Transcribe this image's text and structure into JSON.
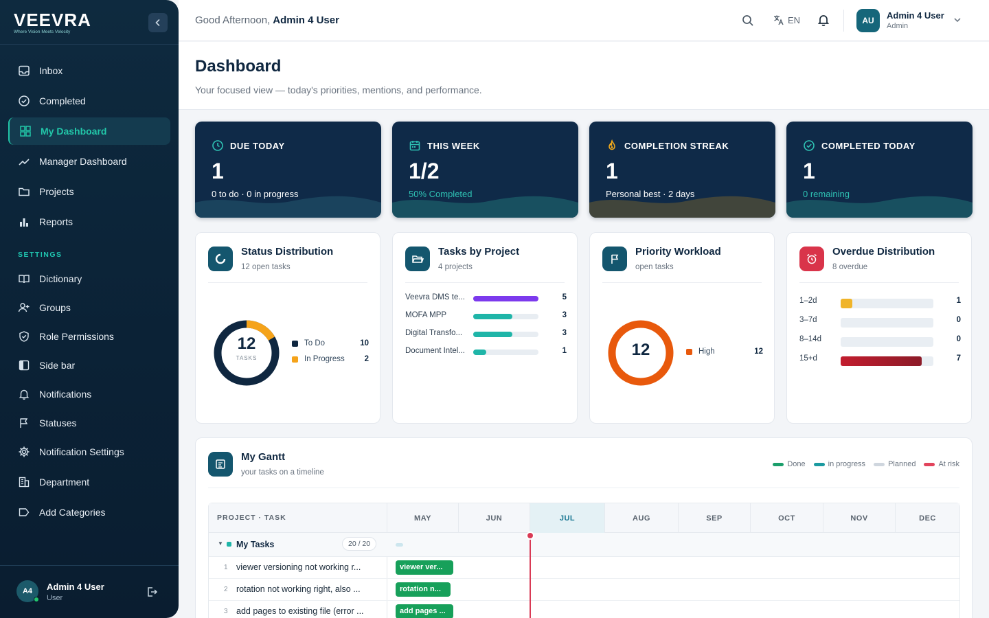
{
  "brand": {
    "name": "VEEVRA",
    "tagline": "Where Vision Meets Velocity"
  },
  "sidebar": {
    "nav": [
      {
        "label": "Inbox",
        "icon": "inbox-icon"
      },
      {
        "label": "Completed",
        "icon": "check-circle-icon"
      },
      {
        "label": "My Dashboard",
        "icon": "dashboard-icon",
        "active": true
      },
      {
        "label": "Manager Dashboard",
        "icon": "trend-icon"
      },
      {
        "label": "Projects",
        "icon": "folder-icon"
      },
      {
        "label": "Reports",
        "icon": "bar-chart-icon"
      }
    ],
    "settings_label": "SETTINGS",
    "settings": [
      {
        "label": "Dictionary",
        "icon": "book-icon"
      },
      {
        "label": "Groups",
        "icon": "add-user-icon"
      },
      {
        "label": "Role Permissions",
        "icon": "shield-icon"
      },
      {
        "label": "Side bar",
        "icon": "sidebar-icon"
      },
      {
        "label": "Notifications",
        "icon": "bell-icon"
      },
      {
        "label": "Statuses",
        "icon": "flag-icon"
      },
      {
        "label": "Notification Settings",
        "icon": "gear-icon"
      },
      {
        "label": "Department",
        "icon": "building-icon"
      },
      {
        "label": "Add Categories",
        "icon": "tag-icon"
      }
    ],
    "user": {
      "initials": "A4",
      "name": "Admin 4 User",
      "role": "User"
    }
  },
  "topbar": {
    "greeting": "Good Afternoon,",
    "greeting_name": "Admin 4 User",
    "language": "EN",
    "user": {
      "initials": "AU",
      "name": "Admin 4 User",
      "role": "Admin"
    }
  },
  "header": {
    "title": "Dashboard",
    "subtitle": "Your focused view — today's priorities, mentions, and performance."
  },
  "stats": [
    {
      "label": "DUE TODAY",
      "value": "1",
      "foot": "0 to do · 0 in progress",
      "icon": "clock-icon",
      "icon_color": "#2fc3b4",
      "foot_color": "#ffffff"
    },
    {
      "label": "THIS WEEK",
      "value": "1/2",
      "foot": "50% Completed",
      "icon": "calendar-icon",
      "icon_color": "#2fc3b4",
      "foot_color": "#2fc3b4"
    },
    {
      "label": "COMPLETION STREAK",
      "value": "1",
      "foot": "Personal best · 2 days",
      "icon": "flame-icon",
      "icon_color": "#f0a91c",
      "foot_color": "#ffffff"
    },
    {
      "label": "COMPLETED TODAY",
      "value": "1",
      "foot": "0 remaining",
      "icon": "check-circle-icon",
      "icon_color": "#2fc3b4",
      "foot_color": "#2fc3b4"
    }
  ],
  "status_card": {
    "title": "Status Distribution",
    "subtitle": "12 open tasks",
    "total": "12",
    "total_label": "TASKS",
    "items": [
      {
        "label": "To Do",
        "value": 10,
        "color": "#0f2740"
      },
      {
        "label": "In Progress",
        "value": 2,
        "color": "#f5a31a"
      }
    ]
  },
  "project_card": {
    "title": "Tasks by Project",
    "subtitle": "4 projects",
    "items": [
      {
        "label": "Veevra DMS te...",
        "value": 5,
        "color": "#7c3aed"
      },
      {
        "label": "MOFA MPP",
        "value": 3,
        "color": "#1fb5a8"
      },
      {
        "label": "Digital Transfo...",
        "value": 3,
        "color": "#1fb5a8"
      },
      {
        "label": "Document Intel...",
        "value": 1,
        "color": "#1fb5a8"
      }
    ],
    "max": 5
  },
  "priority_card": {
    "title": "Priority Workload",
    "subtitle": "open tasks",
    "total": "12",
    "items": [
      {
        "label": "High",
        "value": 12,
        "color": "#e8590c"
      }
    ]
  },
  "overdue_card": {
    "title": "Overdue Distribution",
    "subtitle": "8 overdue",
    "items": [
      {
        "label": "1–2d",
        "value": 1,
        "color": "#f0b429"
      },
      {
        "label": "3–7d",
        "value": 0,
        "color": "#e9eef3"
      },
      {
        "label": "8–14d",
        "value": 0,
        "color": "#e9eef3"
      },
      {
        "label": "15+d",
        "value": 7,
        "color": "#a11d2b"
      }
    ],
    "max": 8
  },
  "gantt": {
    "title": "My Gantt",
    "subtitle": "your tasks on a timeline",
    "legend": [
      {
        "label": "Done",
        "color": "#1b9e6b"
      },
      {
        "label": "in progress",
        "color": "#1b9aa0"
      },
      {
        "label": "Planned",
        "color": "#cfd6de"
      },
      {
        "label": "At risk",
        "color": "#e2445c"
      }
    ],
    "column_header": "PROJECT · TASK",
    "months": [
      "MAY",
      "JUN",
      "JUL",
      "AUG",
      "SEP",
      "OCT",
      "NOV",
      "DEC"
    ],
    "current_month": "JUL",
    "group": {
      "name": "My Tasks",
      "progress": "20 / 20"
    },
    "tasks": [
      {
        "index": "1",
        "name": "viewer versioning not working r...",
        "bar": "viewer ver..."
      },
      {
        "index": "2",
        "name": "rotation not working right, also ...",
        "bar": "rotation n..."
      },
      {
        "index": "3",
        "name": "add pages to existing file (error ...",
        "bar": "add pages ..."
      }
    ]
  }
}
